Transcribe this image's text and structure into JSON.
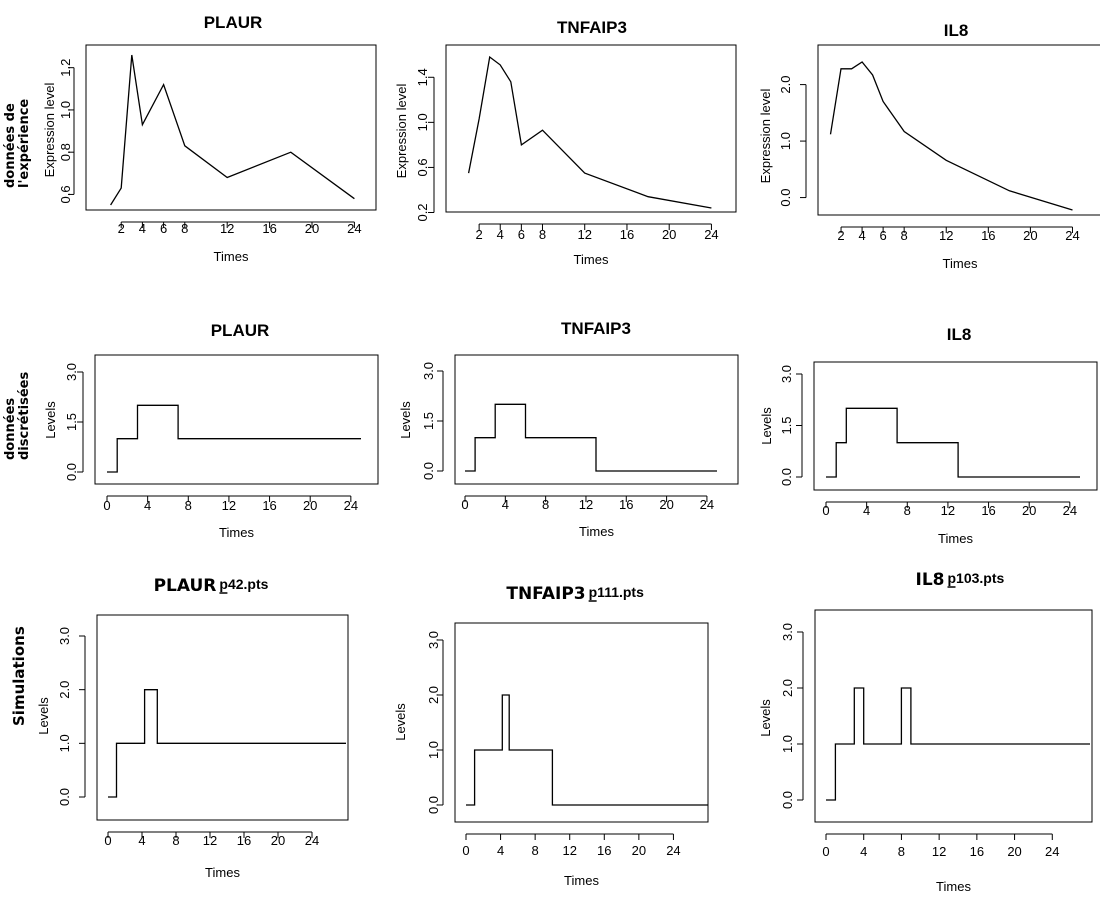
{
  "row_labels": {
    "experiment": [
      "données de",
      "l'expérience"
    ],
    "discretized": [
      "données",
      "discrétisées"
    ],
    "simulations": [
      "Simulations"
    ]
  },
  "chart_data": [
    {
      "type": "line",
      "title": "PLAUR",
      "xlabel": "Times",
      "ylabel": "Expression level",
      "x": [
        1,
        2,
        3,
        4,
        6,
        8,
        12,
        18,
        24
      ],
      "y": [
        0.55,
        0.63,
        1.26,
        0.93,
        1.12,
        0.83,
        0.68,
        0.8,
        0.58
      ],
      "xticks": [
        2,
        4,
        6,
        8,
        12,
        16,
        20,
        24
      ],
      "yticks": [
        "0.6",
        "0.8",
        "1.0",
        "1.2"
      ],
      "yticks_values": [
        0.6,
        0.8,
        1.0,
        1.2
      ],
      "xlim": [
        0,
        25
      ],
      "ylim": [
        0.55,
        1.26
      ]
    },
    {
      "type": "line",
      "title": "TNFAIP3",
      "xlabel": "Times",
      "ylabel": "Expression level",
      "x": [
        1,
        2,
        3,
        4,
        5,
        6,
        8,
        12,
        18,
        24
      ],
      "y": [
        0.55,
        1.03,
        1.58,
        1.51,
        1.36,
        0.8,
        0.93,
        0.55,
        0.34,
        0.24
      ],
      "xticks": [
        2,
        4,
        6,
        8,
        12,
        16,
        20,
        24
      ],
      "yticks": [
        "0.2",
        "0.6",
        "1.0",
        "1.4"
      ],
      "yticks_values": [
        0.2,
        0.6,
        1.0,
        1.4
      ],
      "xlim": [
        0,
        25
      ],
      "ylim": [
        0.24,
        1.58
      ]
    },
    {
      "type": "line",
      "title": "IL8",
      "xlabel": "Times",
      "ylabel": "Expression level",
      "x": [
        1,
        2,
        3,
        4,
        5,
        6,
        8,
        12,
        18,
        24
      ],
      "y": [
        1.12,
        2.28,
        2.28,
        2.4,
        2.17,
        1.7,
        1.17,
        0.66,
        0.12,
        -0.22
      ],
      "xticks": [
        2,
        4,
        6,
        8,
        12,
        16,
        20,
        24
      ],
      "yticks": [
        "0.0",
        "1.0",
        "2.0"
      ],
      "yticks_values": [
        0,
        1,
        2
      ],
      "xlim": [
        0,
        25
      ],
      "ylim": [
        -0.22,
        2.4
      ]
    },
    {
      "type": "step",
      "title": "PLAUR",
      "xlabel": "Times",
      "ylabel": "Levels",
      "x": [
        0,
        1,
        3,
        7,
        25
      ],
      "y": [
        0,
        1,
        2,
        1,
        1
      ],
      "xticks": [
        0,
        4,
        8,
        12,
        16,
        20,
        24
      ],
      "yticks": [
        "0.0",
        "1.5",
        "3.0"
      ],
      "yticks_values": [
        0,
        1.5,
        3
      ],
      "xlim": [
        0,
        25
      ],
      "ylim": [
        0,
        3
      ]
    },
    {
      "type": "step",
      "title": "TNFAIP3",
      "xlabel": "Times",
      "ylabel": "Levels",
      "x": [
        0,
        1,
        3,
        6,
        13,
        25
      ],
      "y": [
        0,
        1,
        2,
        1,
        0,
        0
      ],
      "xticks": [
        0,
        4,
        8,
        12,
        16,
        20,
        24
      ],
      "yticks": [
        "0.0",
        "1.5",
        "3.0"
      ],
      "yticks_values": [
        0,
        1.5,
        3
      ],
      "xlim": [
        0,
        25
      ],
      "ylim": [
        0,
        3
      ]
    },
    {
      "type": "step",
      "title": "IL8",
      "xlabel": "Times",
      "ylabel": "Levels",
      "x": [
        0,
        1,
        2,
        7,
        13,
        25
      ],
      "y": [
        0,
        1,
        2,
        1,
        0,
        0
      ],
      "xticks": [
        0,
        4,
        8,
        12,
        16,
        20,
        24
      ],
      "yticks": [
        "0.0",
        "1.5",
        "3.0"
      ],
      "yticks_values": [
        0,
        1.5,
        3
      ],
      "xlim": [
        0,
        25
      ],
      "ylim": [
        0,
        3
      ]
    },
    {
      "type": "step",
      "title": "PLAUR",
      "title_suffix": "p42.pts",
      "xlabel": "Times",
      "ylabel": "Levels",
      "x": [
        0,
        1,
        4.3,
        5.8,
        28
      ],
      "y": [
        0,
        1,
        2,
        1,
        1
      ],
      "xticks": [
        0,
        4,
        8,
        12,
        16,
        20,
        24
      ],
      "yticks": [
        "0.0",
        "1.0",
        "2.0",
        "3.0"
      ],
      "yticks_values": [
        0,
        1,
        2,
        3
      ],
      "xlim": [
        0,
        28
      ],
      "ylim": [
        0,
        3
      ]
    },
    {
      "type": "step",
      "title": "TNFAIP3",
      "title_suffix": "p111.pts",
      "xlabel": "Times",
      "ylabel": "Levels",
      "x": [
        0,
        1,
        4.2,
        5,
        10,
        28
      ],
      "y": [
        0,
        1,
        2,
        1,
        0,
        0
      ],
      "xticks": [
        0,
        4,
        8,
        12,
        16,
        20,
        24
      ],
      "yticks": [
        "0.0",
        "1.0",
        "2.0",
        "3.0"
      ],
      "yticks_values": [
        0,
        1,
        2,
        3
      ],
      "xlim": [
        0,
        28
      ],
      "ylim": [
        0,
        3
      ]
    },
    {
      "type": "step",
      "title": "IL8",
      "title_suffix": "p103.pts",
      "xlabel": "Times",
      "ylabel": "Levels",
      "x": [
        0,
        1,
        3,
        4,
        8,
        9,
        28
      ],
      "y": [
        0,
        1,
        2,
        1,
        2,
        1,
        1
      ],
      "xticks": [
        0,
        4,
        8,
        12,
        16,
        20,
        24
      ],
      "yticks": [
        "0.0",
        "1.0",
        "2.0",
        "3.0"
      ],
      "yticks_values": [
        0,
        1,
        2,
        3
      ],
      "xlim": [
        0,
        28
      ],
      "ylim": [
        0,
        3
      ]
    }
  ]
}
